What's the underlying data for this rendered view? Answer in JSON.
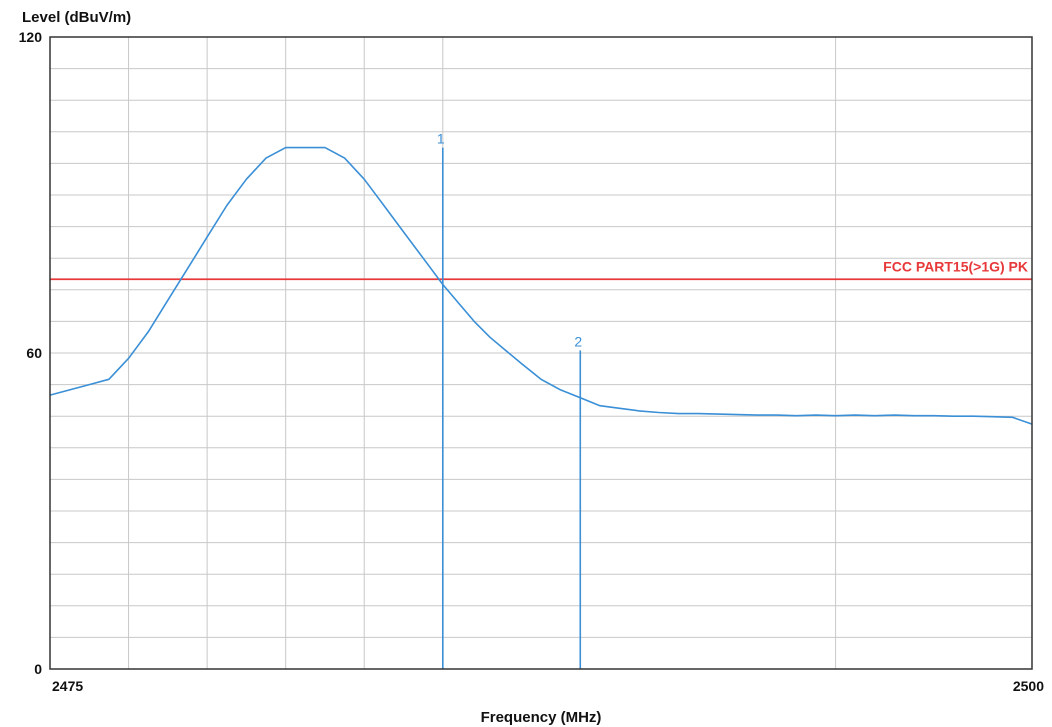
{
  "chart_data": {
    "type": "line",
    "ylabel": "Level (dBuV/m)",
    "xlabel": "Frequency (MHz)",
    "xlim": [
      2475,
      2500
    ],
    "ylim": [
      0,
      120
    ],
    "x_tick_labels": [
      "2475",
      "2500"
    ],
    "y_tick_labels": [
      "0",
      "60",
      "120"
    ],
    "x_ticks": [
      2475,
      2500
    ],
    "y_ticks": [
      0,
      60,
      120
    ],
    "x_gridlines": [
      2477,
      2479,
      2481,
      2483,
      2485,
      2495,
      2500
    ],
    "y_gridlines": [
      6,
      12,
      18,
      24,
      30,
      36,
      42,
      48,
      54,
      60,
      66,
      72,
      78,
      84,
      90,
      96,
      102,
      108,
      114
    ],
    "grid": true,
    "limit_line": {
      "name": "FCC PART15(>1G) PK",
      "value": 74,
      "color": "#e8393a"
    },
    "series": [
      {
        "color": "#3a8fd6",
        "x": [
          2475.0,
          2475.5,
          2476.0,
          2476.5,
          2477.0,
          2477.5,
          2478.0,
          2478.5,
          2479.0,
          2479.5,
          2480.0,
          2480.5,
          2481.0,
          2481.5,
          2482.0,
          2482.5,
          2483.0,
          2483.5,
          2484.0,
          2484.5,
          2485.0,
          2485.4,
          2485.8,
          2486.2,
          2486.6,
          2487.0,
          2487.5,
          2488.0,
          2488.5,
          2489.0,
          2489.5,
          2490.0,
          2490.5,
          2491.0,
          2491.5,
          2492.0,
          2492.5,
          2493.0,
          2493.5,
          2494.0,
          2494.5,
          2495.0,
          2495.5,
          2496.0,
          2496.5,
          2497.0,
          2497.5,
          2498.0,
          2498.5,
          2499.0,
          2499.5,
          2500.0
        ],
        "y": [
          52,
          53,
          54,
          55,
          59,
          64,
          70,
          76,
          82,
          88,
          93,
          97,
          99,
          99,
          99,
          97,
          93,
          88,
          83,
          78,
          73,
          69.5,
          66,
          63,
          60.5,
          58,
          55,
          53,
          51.5,
          50,
          49.5,
          49,
          48.7,
          48.5,
          48.5,
          48.4,
          48.3,
          48.2,
          48.2,
          48.1,
          48.2,
          48.1,
          48.2,
          48.1,
          48.2,
          48.1,
          48.1,
          48.0,
          48.0,
          47.9,
          47.8,
          46.5
        ]
      }
    ],
    "markers": [
      {
        "label": "1",
        "x": 2485,
        "y": 99
      },
      {
        "label": "2",
        "x": 2488.5,
        "y": 60.5
      }
    ]
  }
}
